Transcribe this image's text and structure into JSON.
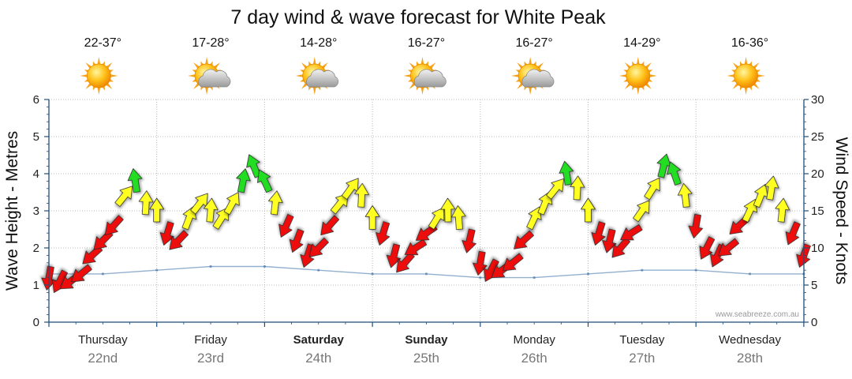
{
  "chart_data": {
    "type": "line",
    "title": "7 day wind & wave forecast for White Peak",
    "ylabel": "Wave Height - Metres",
    "y2label": "Wind Speed - Knots",
    "ylim": [
      0,
      6
    ],
    "y2lim": [
      0,
      30
    ],
    "yticks": [
      "0",
      "1",
      "2",
      "3",
      "4",
      "5",
      "6"
    ],
    "y2ticks": [
      "0",
      "5",
      "10",
      "15",
      "20",
      "25",
      "30"
    ],
    "watermark": "www.seabreeze.com.au",
    "days": [
      {
        "name": "Thursday",
        "date": "22nd",
        "temp": "22-37°",
        "weather": "sunny",
        "bold": false
      },
      {
        "name": "Friday",
        "date": "23rd",
        "temp": "17-28°",
        "weather": "partly-cloudy",
        "bold": false
      },
      {
        "name": "Saturday",
        "date": "24th",
        "temp": "14-28°",
        "weather": "partly-cloudy",
        "bold": true
      },
      {
        "name": "Sunday",
        "date": "25th",
        "temp": "16-27°",
        "weather": "partly-cloudy",
        "bold": true
      },
      {
        "name": "Monday",
        "date": "26th",
        "temp": "16-27°",
        "weather": "partly-cloudy",
        "bold": false
      },
      {
        "name": "Tuesday",
        "date": "27th",
        "temp": "14-29°",
        "weather": "sunny",
        "bold": false
      },
      {
        "name": "Wednesday",
        "date": "28th",
        "temp": "16-36°",
        "weather": "sunny",
        "bold": false
      }
    ],
    "wind_series": {
      "name": "Wind Speed (knots)",
      "x_days": [
        0.0,
        0.1,
        0.2,
        0.3,
        0.4,
        0.5,
        0.6,
        0.7,
        0.8,
        0.9,
        1.0,
        1.1,
        1.2,
        1.3,
        1.4,
        1.5,
        1.6,
        1.7,
        1.8,
        1.9,
        2.0,
        2.1,
        2.2,
        2.3,
        2.4,
        2.5,
        2.6,
        2.7,
        2.8,
        2.9,
        3.0,
        3.1,
        3.2,
        3.3,
        3.4,
        3.5,
        3.6,
        3.7,
        3.8,
        3.9,
        4.0,
        4.1,
        4.2,
        4.3,
        4.4,
        4.5,
        4.6,
        4.7,
        4.8,
        4.9,
        5.0,
        5.1,
        5.2,
        5.3,
        5.4,
        5.5,
        5.6,
        5.7,
        5.8,
        5.9,
        6.0,
        6.1,
        6.2,
        6.3,
        6.4,
        6.5,
        6.6,
        6.7,
        6.8,
        6.9,
        7.0
      ],
      "knots": [
        6,
        5.5,
        5.5,
        6.5,
        9,
        11,
        13,
        17,
        19,
        16,
        15,
        12,
        11,
        14,
        16,
        15,
        14,
        16,
        19,
        21,
        19,
        16,
        13,
        11,
        9,
        10,
        13,
        16,
        18,
        17,
        14,
        12,
        9,
        8,
        10,
        12,
        14,
        15,
        14,
        11,
        8,
        7,
        7,
        8,
        11,
        14,
        16,
        18,
        20,
        18,
        15,
        12,
        11,
        10,
        12,
        15,
        18,
        21,
        20,
        17,
        13,
        10,
        9,
        10,
        13,
        15,
        17,
        18,
        15,
        12,
        9
      ]
    },
    "wave_series": {
      "name": "Wave Height (m)",
      "x_days": [
        0,
        0.5,
        1,
        1.5,
        2,
        2.5,
        3,
        3.5,
        4,
        4.5,
        5,
        5.5,
        6,
        6.5,
        7
      ],
      "metres": [
        1.3,
        1.3,
        1.4,
        1.5,
        1.5,
        1.4,
        1.3,
        1.3,
        1.2,
        1.2,
        1.3,
        1.4,
        1.4,
        1.3,
        1.3
      ]
    }
  }
}
